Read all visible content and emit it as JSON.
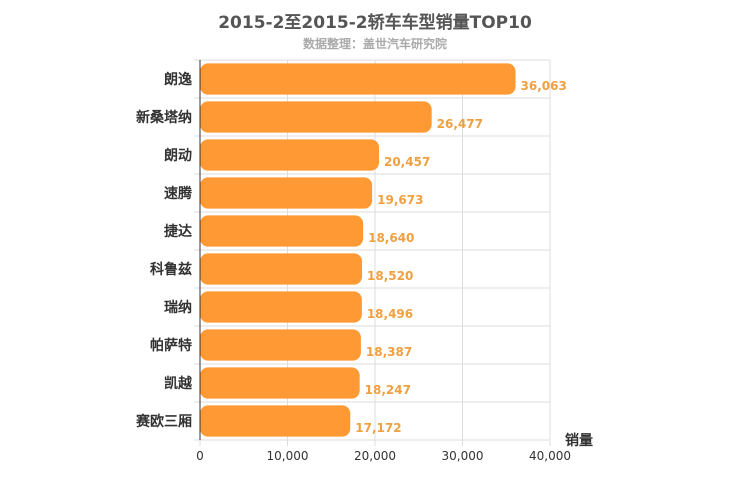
{
  "chart_data": {
    "type": "bar",
    "orientation": "horizontal",
    "title": "2015-2至2015-2轿车车型销量TOP10",
    "subtitle": "数据整理：盖世汽车研究院",
    "xlabel": "销量",
    "ylabel": "",
    "xlim": [
      0,
      40000
    ],
    "x_ticks": [
      "0",
      "10,000",
      "20,000",
      "30,000",
      "40,000"
    ],
    "grid": true,
    "categories": [
      "朗逸",
      "新桑塔纳",
      "朗动",
      "速腾",
      "捷达",
      "科鲁兹",
      "瑞纳",
      "帕萨特",
      "凯越",
      "赛欧三厢"
    ],
    "values": [
      36063,
      26477,
      20457,
      19673,
      18640,
      18520,
      18496,
      18387,
      18247,
      17172
    ],
    "value_labels": [
      "36,063",
      "26,477",
      "20,457",
      "19,673",
      "18,640",
      "18,520",
      "18,496",
      "18,387",
      "18,247",
      "17,172"
    ],
    "colors": {
      "bar": "#FF9933",
      "label": "#F0A040",
      "grid": "#dddddd",
      "axis": "#333333"
    }
  }
}
